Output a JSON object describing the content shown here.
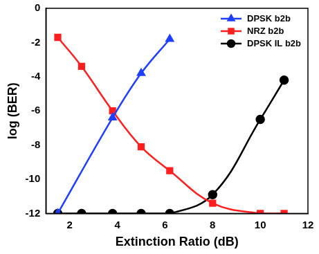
{
  "chart_data": {
    "type": "line",
    "x_label": "Extinction Ratio (dB)",
    "y_label": "log (BER)",
    "xlim": [
      1,
      12
    ],
    "xticks": [
      2,
      4,
      6,
      8,
      10,
      12
    ],
    "ylim": [
      -12,
      0
    ],
    "yticks": [
      -12,
      -10,
      -8,
      -6,
      -4,
      -2,
      0
    ],
    "grid": false,
    "legend": "top-right",
    "series": [
      {
        "name": "DPSK b2b",
        "color": "#1f3fff",
        "marker": "triangle",
        "line_style": "solid",
        "x": [
          1.5,
          3.8,
          5.0,
          6.2
        ],
        "values": [
          -12.0,
          -6.4,
          -3.8,
          -1.8
        ]
      },
      {
        "name": "NRZ b2b",
        "color": "#ff1f1f",
        "marker": "square",
        "line_style": "solid",
        "x": [
          1.5,
          2.5,
          3.8,
          5.0,
          6.2,
          8.0,
          10.0,
          11.0
        ],
        "values": [
          -1.7,
          -3.4,
          -6.0,
          -8.1,
          -9.5,
          -11.4,
          -12.0,
          -12.0
        ]
      },
      {
        "name": "DPSK IL b2b",
        "color": "#000000",
        "marker": "circle",
        "line_style": "solid",
        "x": [
          1.5,
          2.5,
          3.8,
          5.0,
          6.2,
          8.0,
          10.0,
          11.0
        ],
        "values": [
          -12.0,
          -12.0,
          -12.0,
          -12.0,
          -12.0,
          -10.9,
          -6.5,
          -4.2
        ]
      }
    ]
  }
}
